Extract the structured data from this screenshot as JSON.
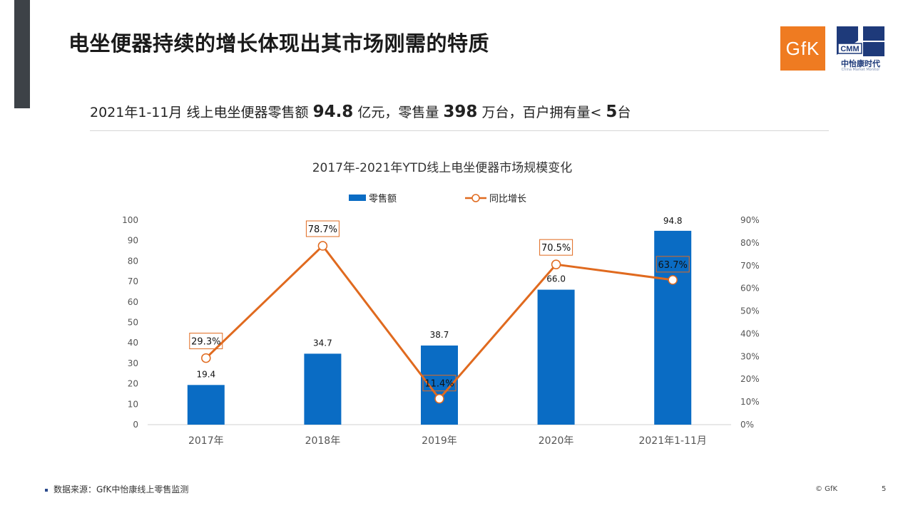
{
  "slide": {
    "title": "电坐便器持续的增长体现出其市场刚需的特质",
    "subtitle": {
      "p1": "2021年1-11月 线上电坐便器零售额 ",
      "v1": "94.8",
      "p2": " 亿元，零售量 ",
      "v2": "398",
      "p3": " 万台，百户拥有量< ",
      "v3": "5",
      "p4": "台"
    },
    "footer_note": "数据来源：GfK中怡康线上零售监测",
    "copyright": "© GfK",
    "page_number": "5",
    "logos": {
      "gfk": "GfK",
      "cmm_mark": "CMM",
      "cmm_name": "中怡康时代",
      "cmm_sub": "China Market Monitor"
    },
    "colors": {
      "bar": "#0a6cc4",
      "line": "#e06a1f",
      "side_bar": "#3d4247",
      "gfk_orange": "#ef7b21"
    }
  },
  "chart_data": {
    "type": "bar",
    "title": "2017年-2021年YTD线上电坐便器市场规模变化",
    "categories": [
      "2017年",
      "2018年",
      "2019年",
      "2020年",
      "2021年1-11月"
    ],
    "series": [
      {
        "name": "零售额",
        "type": "bar",
        "axis": "left",
        "values": [
          19.4,
          34.7,
          38.7,
          66.0,
          94.8
        ],
        "labels": [
          "19.4",
          "34.7",
          "38.7",
          "66.0",
          "94.8"
        ]
      },
      {
        "name": "同比增长",
        "type": "line",
        "axis": "right",
        "values": [
          29.3,
          78.7,
          11.4,
          70.5,
          63.7
        ],
        "labels": [
          "29.3%",
          "78.7%",
          "11.4%",
          "70.5%",
          "63.7%"
        ]
      }
    ],
    "y_left": {
      "min": 0,
      "max": 100,
      "step": 10
    },
    "y_right": {
      "min": 0,
      "max": 90,
      "step": 10,
      "suffix": "%"
    },
    "legend_position": "top-center",
    "grid": false
  }
}
